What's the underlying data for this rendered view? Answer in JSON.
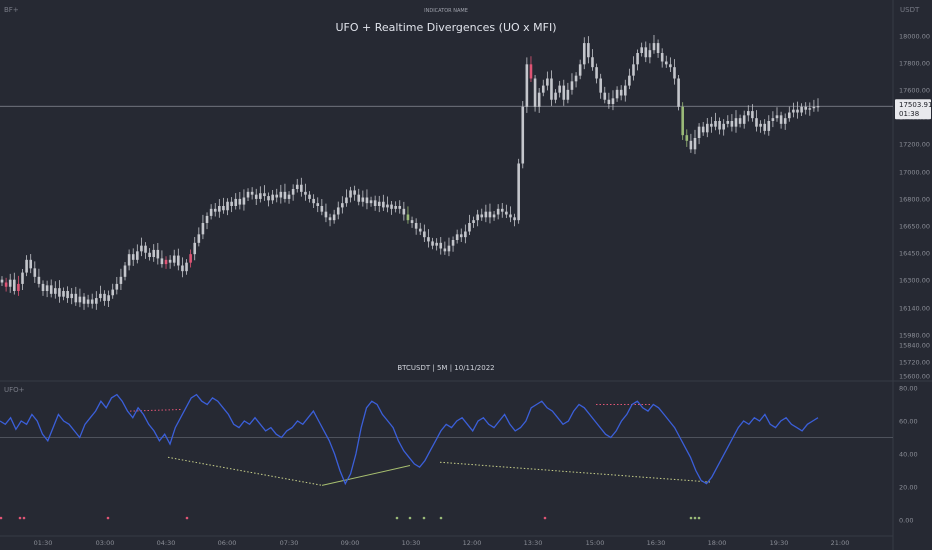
{
  "corner_tag": "BF+",
  "indicator_name_label": "INDICATOR NAME",
  "pane_label": "UFO+",
  "chart_data": [
    {
      "type": "candlestick",
      "title": "UFO + Realtime Divergences (UO x MFI)",
      "subtitle": "BTCUSDT | 5M | 10/11/2022",
      "currency_label": "USDT",
      "price_ticks": [
        "18000.00",
        "17800.00",
        "17600.00",
        "17400.00",
        "17200.00",
        "17000.00",
        "16800.00",
        "16650.00",
        "16450.00",
        "16300.00",
        "16140.00",
        "15980.00",
        "15840.00",
        "15720.00",
        "15600.00"
      ],
      "last_price": "17503.91",
      "countdown": "01:38",
      "x_labels": [
        "01:30",
        "03:00",
        "04:30",
        "06:00",
        "07:30",
        "09:00",
        "10:30",
        "12:00",
        "13:30",
        "15:00",
        "16:30",
        "18:00",
        "19:30",
        "21:00"
      ],
      "close_series": [
        16260,
        16230,
        16280,
        16200,
        16250,
        16330,
        16420,
        16360,
        16300,
        16250,
        16200,
        16240,
        16180,
        16220,
        16160,
        16200,
        16150,
        16180,
        16120,
        16160,
        16110,
        16140,
        16110,
        16150,
        16180,
        16130,
        16170,
        16210,
        16250,
        16300,
        16380,
        16460,
        16420,
        16480,
        16520,
        16470,
        16440,
        16490,
        16430,
        16390,
        16420,
        16400,
        16450,
        16380,
        16340,
        16400,
        16460,
        16540,
        16600,
        16680,
        16730,
        16780,
        16760,
        16800,
        16770,
        16830,
        16800,
        16850,
        16810,
        16860,
        16900,
        16880,
        16850,
        16890,
        16870,
        16840,
        16880,
        16860,
        16900,
        16850,
        16880,
        16920,
        16950,
        16900,
        16880,
        16850,
        16820,
        16800,
        16760,
        16720,
        16700,
        16740,
        16790,
        16820,
        16860,
        16910,
        16880,
        16830,
        16860,
        16820,
        16840,
        16800,
        16830,
        16790,
        16810,
        16780,
        16800,
        16780,
        16740,
        16700,
        16680,
        16640,
        16620,
        16580,
        16550,
        16520,
        16540,
        16500,
        16480,
        16520,
        16560,
        16600,
        16580,
        16620,
        16680,
        16700,
        16740,
        16720,
        16760,
        16720,
        16740,
        16780,
        16760,
        16740,
        16720,
        16700,
        17100,
        17500,
        17800,
        17700,
        17500,
        17600,
        17650,
        17700,
        17550,
        17600,
        17650,
        17550,
        17620,
        17680,
        17720,
        17800,
        17950,
        17850,
        17780,
        17700,
        17600,
        17550,
        17520,
        17560,
        17620,
        17580,
        17650,
        17720,
        17800,
        17880,
        17920,
        17850,
        17900,
        17950,
        17880,
        17820,
        17800,
        17780,
        17700,
        17500,
        17300,
        17260,
        17200,
        17280,
        17360,
        17320,
        17380,
        17360,
        17400,
        17340,
        17380,
        17400,
        17360,
        17420,
        17380,
        17440,
        17470,
        17420,
        17360,
        17380,
        17330,
        17400,
        17420,
        17440,
        17380,
        17420,
        17460,
        17480,
        17460,
        17500,
        17480,
        17490,
        17500,
        17503.91
      ],
      "ylim": [
        15600,
        18200
      ]
    },
    {
      "type": "line",
      "name": "UFO+",
      "y_ticks": [
        "80.00",
        "60.00",
        "40.00",
        "20.00",
        "0.00"
      ],
      "ylim": [
        0,
        80
      ],
      "reference_line": 50,
      "values": [
        60,
        58,
        62,
        55,
        60,
        58,
        64,
        60,
        52,
        48,
        56,
        64,
        60,
        58,
        54,
        50,
        58,
        62,
        66,
        72,
        68,
        74,
        76,
        72,
        66,
        62,
        68,
        64,
        58,
        54,
        48,
        52,
        46,
        56,
        62,
        68,
        74,
        76,
        72,
        70,
        74,
        72,
        68,
        64,
        58,
        56,
        60,
        58,
        62,
        58,
        54,
        56,
        52,
        50,
        54,
        56,
        60,
        58,
        62,
        66,
        60,
        54,
        48,
        40,
        30,
        22,
        28,
        40,
        56,
        68,
        72,
        70,
        64,
        60,
        56,
        48,
        42,
        38,
        34,
        32,
        36,
        42,
        48,
        54,
        58,
        56,
        60,
        62,
        58,
        54,
        60,
        62,
        58,
        56,
        60,
        64,
        58,
        54,
        56,
        60,
        68,
        70,
        72,
        68,
        66,
        62,
        58,
        60,
        66,
        70,
        68,
        64,
        60,
        56,
        52,
        50,
        54,
        60,
        64,
        70,
        72,
        68,
        66,
        70,
        68,
        64,
        60,
        56,
        50,
        44,
        38,
        30,
        24,
        22,
        26,
        32,
        38,
        44,
        50,
        56,
        60,
        58,
        62,
        60,
        64,
        58,
        56,
        60,
        62,
        58,
        56,
        54,
        58,
        60,
        62
      ],
      "divergence_lines": [
        {
          "x": [
            130,
            182
          ],
          "y": [
            66,
            67
          ],
          "style": "dotted",
          "color": "#e05575"
        },
        {
          "x": [
            168,
            322
          ],
          "y": [
            38,
            21
          ],
          "style": "dotted",
          "color": "#c8d08a"
        },
        {
          "x": [
            322,
            410
          ],
          "y": [
            21,
            33
          ],
          "style": "solid",
          "color": "#a8c070"
        },
        {
          "x": [
            440,
            710
          ],
          "y": [
            35,
            23
          ],
          "style": "dotted",
          "color": "#c8d08a"
        },
        {
          "x": [
            596,
            650
          ],
          "y": [
            70,
            70
          ],
          "style": "dotted",
          "color": "#e05575"
        }
      ],
      "signal_markers": [
        {
          "x": 1,
          "color": "#e05575"
        },
        {
          "x": 20,
          "color": "#e05575"
        },
        {
          "x": 24,
          "color": "#e05575"
        },
        {
          "x": 108,
          "color": "#e05575"
        },
        {
          "x": 187,
          "color": "#e05575"
        },
        {
          "x": 397,
          "color": "#9aba78"
        },
        {
          "x": 410,
          "color": "#9aba78"
        },
        {
          "x": 424,
          "color": "#9aba78"
        },
        {
          "x": 441,
          "color": "#9aba78"
        },
        {
          "x": 545,
          "color": "#e05575"
        },
        {
          "x": 691,
          "color": "#9aba78"
        },
        {
          "x": 695,
          "color": "#9aba78"
        },
        {
          "x": 699,
          "color": "#9aba78"
        }
      ]
    }
  ],
  "colors": {
    "background": "#262933",
    "candle_neutral": "#c4c6cc",
    "candle_bear": "#e05575",
    "candle_bull": "#9aba78",
    "ufo_line": "#3b5fd9"
  }
}
